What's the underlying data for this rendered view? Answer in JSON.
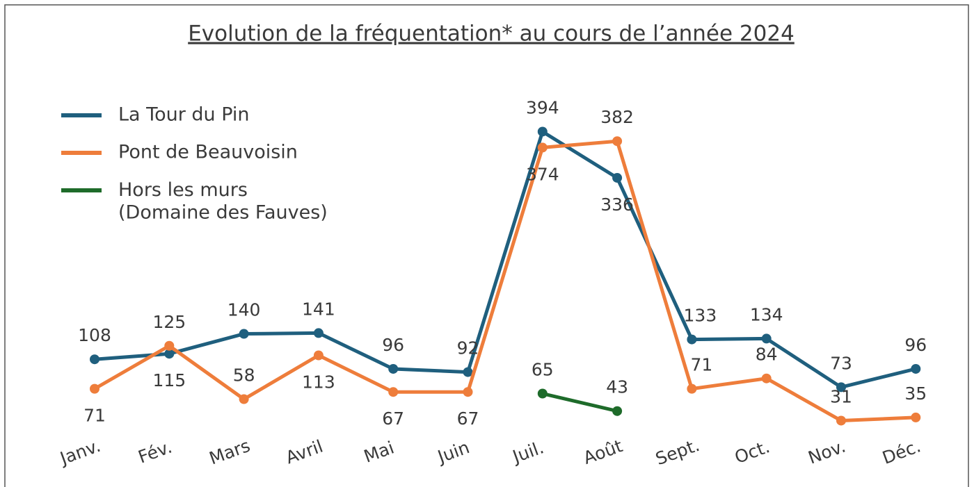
{
  "chart_data": {
    "type": "line",
    "title": "Evolution de la fréquentation* au cours de l’année 2024",
    "categories": [
      "Janv.",
      "Fév.",
      "Mars",
      "Avril",
      "Mai",
      "Juin",
      "Juil.",
      "Août",
      "Sept.",
      "Oct.",
      "Nov.",
      "Déc."
    ],
    "series": [
      {
        "name": "La Tour du Pin",
        "color": "#1f5f7e",
        "values": [
          108,
          115,
          140,
          141,
          96,
          92,
          394,
          336,
          133,
          134,
          73,
          96
        ]
      },
      {
        "name": "Pont de Beauvoisin",
        "color": "#ee7d3b",
        "values": [
          71,
          125,
          58,
          113,
          67,
          67,
          374,
          382,
          71,
          84,
          31,
          35
        ]
      },
      {
        "name": "Hors les murs\n(Domaine des Fauves)",
        "color": "#1e6b2a",
        "values": [
          null,
          null,
          null,
          null,
          null,
          null,
          65,
          43,
          null,
          null,
          null,
          null
        ]
      }
    ],
    "legend": "upper left"
  }
}
